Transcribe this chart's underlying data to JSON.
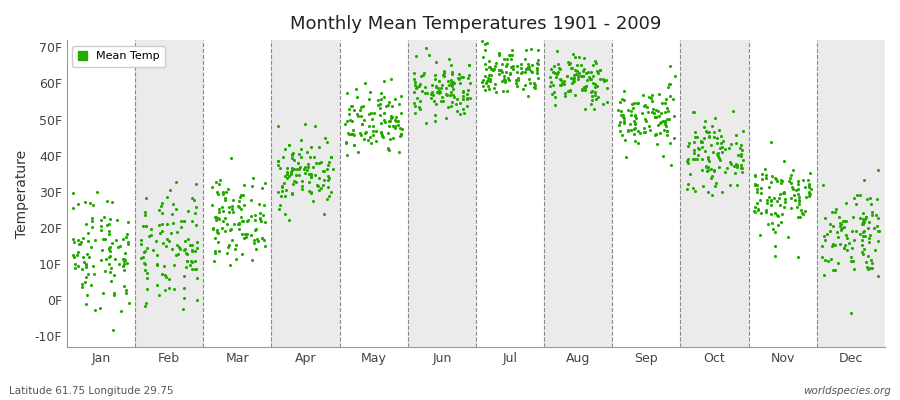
{
  "title": "Monthly Mean Temperatures 1901 - 2009",
  "ylabel": "Temperature",
  "footer_left": "Latitude 61.75 Longitude 29.75",
  "footer_right": "worldspecies.org",
  "legend_label": "Mean Temp",
  "dot_color": "#22aa00",
  "bg_color": "#ffffff",
  "plot_bg": "#ffffff",
  "band_color": "#ebebeb",
  "ylim": [
    -13,
    72
  ],
  "yticks": [
    -10,
    0,
    10,
    20,
    30,
    40,
    50,
    60,
    70
  ],
  "ytick_labels": [
    "-10F",
    "0F",
    "10F",
    "20F",
    "30F",
    "40F",
    "50F",
    "60F",
    "70F"
  ],
  "months": [
    "Jan",
    "Feb",
    "Mar",
    "Apr",
    "May",
    "Jun",
    "Jul",
    "Aug",
    "Sep",
    "Oct",
    "Nov",
    "Dec"
  ],
  "month_means_F": [
    14.0,
    13.5,
    22.5,
    35.5,
    48.5,
    58.0,
    63.5,
    61.0,
    50.5,
    40.0,
    28.5,
    19.0
  ],
  "month_stds_F": [
    8.5,
    8.0,
    5.5,
    5.0,
    5.0,
    4.0,
    3.5,
    3.5,
    4.5,
    4.5,
    5.5,
    6.5
  ],
  "n_years": 109,
  "seed": 42
}
